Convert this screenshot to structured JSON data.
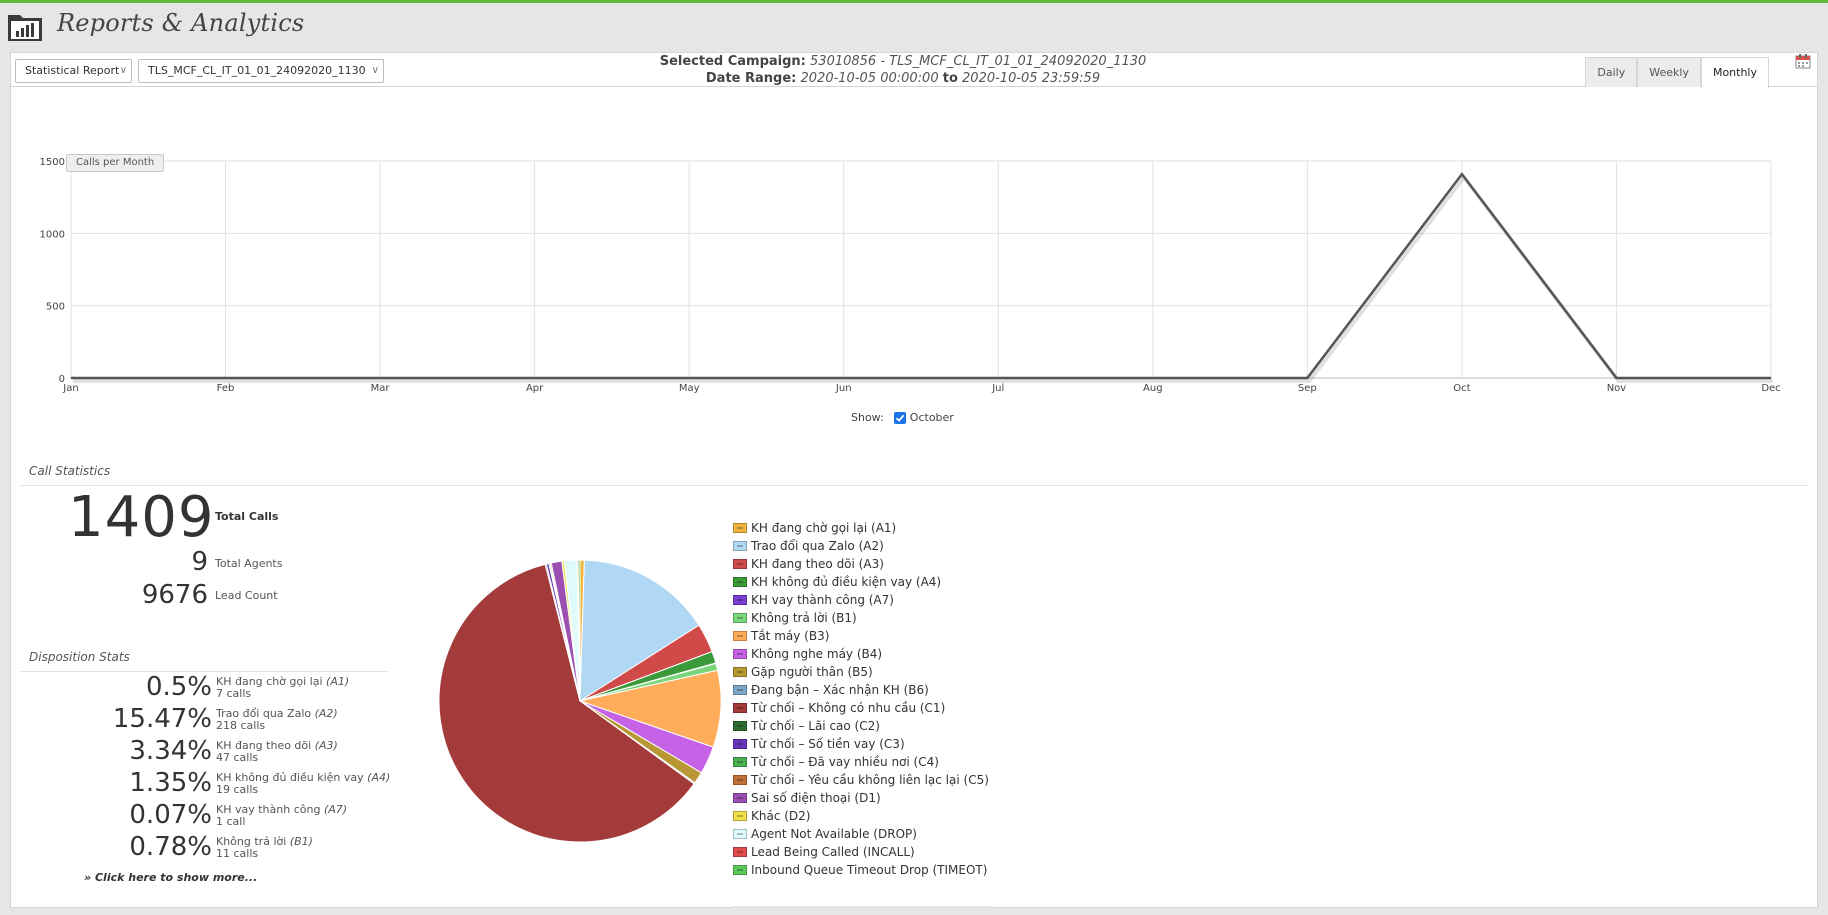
{
  "app": {
    "title": "Reports & Analytics"
  },
  "toolbar": {
    "report_type": "Statistical Report",
    "campaign": "TLS_MCF_CL_IT_01_01_24092020_1130",
    "tabs": [
      {
        "label": "Daily",
        "active": false
      },
      {
        "label": "Weekly",
        "active": false
      },
      {
        "label": "Monthly",
        "active": true
      }
    ],
    "calendar_icon": "calendar-icon"
  },
  "campaign_info": {
    "selected_label": "Selected Campaign:",
    "selected_value": "53010856 - TLS_MCF_CL_IT_01_01_24092020_1130",
    "date_label": "Date Range:",
    "date_from": "2020-10-05 00:00:00",
    "to_word": "to",
    "date_to": "2020-10-05 23:59:59"
  },
  "chart_button": "Calls per Month",
  "show": {
    "label": "Show:",
    "series_label": "October",
    "checked": true
  },
  "chart_data": [
    {
      "type": "line",
      "x": [
        "Jan",
        "Feb",
        "Mar",
        "Apr",
        "May",
        "Jun",
        "Jul",
        "Aug",
        "Sep",
        "Oct",
        "Nov",
        "Dec"
      ],
      "series": [
        {
          "name": "October",
          "values": [
            0,
            0,
            0,
            0,
            0,
            0,
            0,
            0,
            0,
            1409,
            0,
            0
          ]
        }
      ],
      "yticks": [
        "0",
        "500",
        "1000",
        "1500"
      ],
      "ylim": [
        0,
        1500
      ],
      "grid": true,
      "line_color": "#555555"
    },
    {
      "type": "pie",
      "slices": [
        {
          "label": "KH đang chờ gọi lại (A1)",
          "value": 7,
          "color": "#f2b441"
        },
        {
          "label": "Trao đổi qua Zalo (A2)",
          "value": 218,
          "color": "#b0d8f5"
        },
        {
          "label": "KH đang theo dõi (A3)",
          "value": 47,
          "color": "#d04a4a"
        },
        {
          "label": "KH không đủ điều kiện vay (A4)",
          "value": 19,
          "color": "#3a9a3a"
        },
        {
          "label": "KH vay thành công (A7)",
          "value": 1,
          "color": "#7a3fd0"
        },
        {
          "label": "Không trả lời (B1)",
          "value": 11,
          "color": "#7ad67a"
        },
        {
          "label": "Tắt máy (B3)",
          "value": 124,
          "color": "#ffad5b"
        },
        {
          "label": "Không nghe máy (B4)",
          "value": 45,
          "color": "#c562e6"
        },
        {
          "label": "Gặp người thân (B5)",
          "value": 19,
          "color": "#b89734"
        },
        {
          "label": "Đang bận – Xác nhận KH (B6)",
          "value": 2,
          "color": "#7ca5c8"
        },
        {
          "label": "Từ chối – Không có nhu cầu (C1)",
          "value": 860,
          "color": "#a33b3b"
        },
        {
          "label": "Từ chối – Lãi cao (C2)",
          "value": 2,
          "color": "#2e6b2e"
        },
        {
          "label": "Từ chối – Số tiền vay (C3)",
          "value": 4,
          "color": "#6a34b8"
        },
        {
          "label": "Từ chối – Đã vay nhiều nơi (C4)",
          "value": 2,
          "color": "#4caf50"
        },
        {
          "label": "Từ chối – Yêu cầu không liên lạc lại (C5)",
          "value": 2,
          "color": "#c0703a"
        },
        {
          "label": "Sai số điện thoại (D1)",
          "value": 17,
          "color": "#9b4fb0"
        },
        {
          "label": "Khác (D2)",
          "value": 4,
          "color": "#f0e04a"
        },
        {
          "label": "Agent Not Available (DROP)",
          "value": 20,
          "color": "#e0fbfc"
        },
        {
          "label": "Lead Being Called (INCALL)",
          "value": 2,
          "color": "#e04a4a"
        },
        {
          "label": "Inbound Queue Timeout Drop (TIMEOT)",
          "value": 3,
          "color": "#5cc85c"
        }
      ]
    }
  ],
  "call_stats": {
    "title": "Call Statistics",
    "total_calls": "1409",
    "total_calls_label": "Total Calls",
    "total_agents": "9",
    "total_agents_label": "Total Agents",
    "lead_count": "9676",
    "lead_count_label": "Lead Count"
  },
  "disposition": {
    "title": "Disposition Stats",
    "rows": [
      {
        "pct": "0.5%",
        "name": "KH đang chờ gọi lại",
        "code": "(A1)",
        "calls": "7 calls"
      },
      {
        "pct": "15.47%",
        "name": "Trao đổi qua Zalo",
        "code": "(A2)",
        "calls": "218 calls"
      },
      {
        "pct": "3.34%",
        "name": "KH đang theo dõi",
        "code": "(A3)",
        "calls": "47 calls"
      },
      {
        "pct": "1.35%",
        "name": "KH không đủ điều kiện vay",
        "code": "(A4)",
        "calls": "19 calls"
      },
      {
        "pct": "0.07%",
        "name": "KH vay thành công",
        "code": "(A7)",
        "calls": "1 call"
      },
      {
        "pct": "0.78%",
        "name": "Không trả lời",
        "code": "(B1)",
        "calls": "11 calls"
      }
    ],
    "more_link": "» Click here to show more..."
  }
}
